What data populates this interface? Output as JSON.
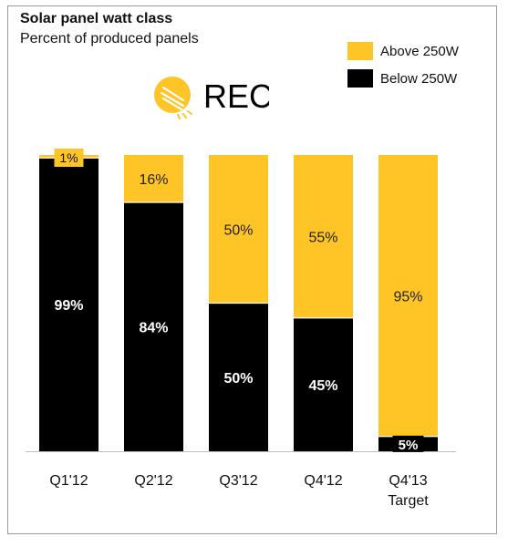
{
  "chart_data": {
    "type": "bar",
    "stacked": true,
    "title": "Solar panel watt class",
    "subtitle": "Percent of produced panels",
    "categories": [
      "Q1'12",
      "Q2'12",
      "Q3'12",
      "Q4'12",
      "Q4'13 Target"
    ],
    "category_lines": [
      [
        "Q1'12"
      ],
      [
        "Q2'12"
      ],
      [
        "Q3'12"
      ],
      [
        "Q4'12"
      ],
      [
        "Q4'13",
        "Target"
      ]
    ],
    "series": [
      {
        "name": "Below 250W",
        "color": "#000000",
        "values": [
          99,
          84,
          50,
          45,
          5
        ],
        "labels": [
          "99%",
          "84%",
          "50%",
          "45%",
          "5%"
        ]
      },
      {
        "name": "Above 250W",
        "color": "#FFC425",
        "values": [
          1,
          16,
          50,
          55,
          95
        ],
        "labels": [
          "1%",
          "16%",
          "50%",
          "55%",
          "95%"
        ]
      }
    ],
    "ylim": [
      0,
      100
    ],
    "grid": false,
    "legend": "top-right"
  },
  "legend": {
    "items": [
      {
        "label": "Above 250W",
        "color": "#FFC425"
      },
      {
        "label": "Below 250W",
        "color": "#000000"
      }
    ]
  },
  "logo": {
    "text": "REC",
    "icon": "rec-sun-logo-icon",
    "color": "#FFC425"
  }
}
